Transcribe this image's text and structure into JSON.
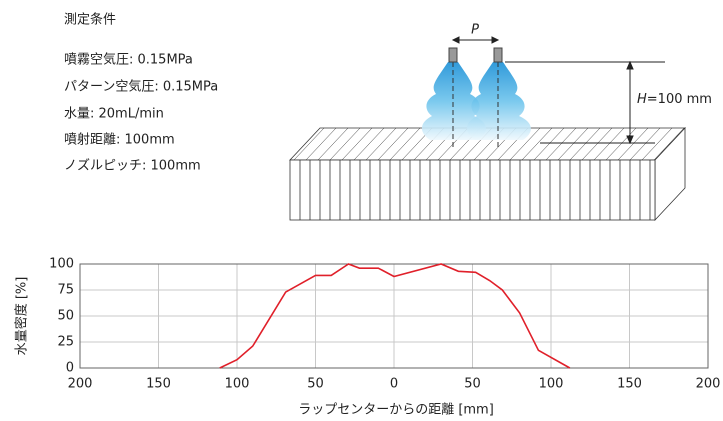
{
  "conditions": {
    "title": "測定条件",
    "items": [
      "噴霧空気圧: 0.15MPa",
      "パターン空気圧: 0.15MPa",
      "水量: 20mL/min",
      "噴射距離: 100mm",
      "ノズルピッチ: 100mm"
    ]
  },
  "diagram": {
    "pitch_label": "P",
    "height_symbol": "H",
    "height_value": "=100 mm"
  },
  "chart_data": {
    "type": "line",
    "x_label": "ラップセンターからの距離 [mm]",
    "y_label": "水量密度 [%]",
    "x": [
      -111,
      -100,
      -90,
      -69,
      -50,
      -40,
      -29,
      -22,
      -10,
      0,
      30,
      41,
      52,
      61,
      69,
      80,
      92,
      112
    ],
    "series": [
      {
        "name": "水量密度",
        "color": "#e0202a",
        "values": [
          0,
          8,
          21,
          73,
          89,
          89,
          100,
          96,
          96,
          88,
          100,
          93,
          92,
          84,
          75,
          53,
          17,
          0
        ]
      }
    ],
    "xlim": [
      -200,
      200
    ],
    "xticks": [
      {
        "value": -200,
        "label": "200"
      },
      {
        "value": -150,
        "label": "150"
      },
      {
        "value": -100,
        "label": "100"
      },
      {
        "value": -50,
        "label": "50"
      },
      0,
      50,
      100,
      150,
      200
    ],
    "ylim": [
      0,
      100
    ],
    "yticks": [
      0,
      25,
      50,
      75,
      100
    ],
    "grid": true
  }
}
